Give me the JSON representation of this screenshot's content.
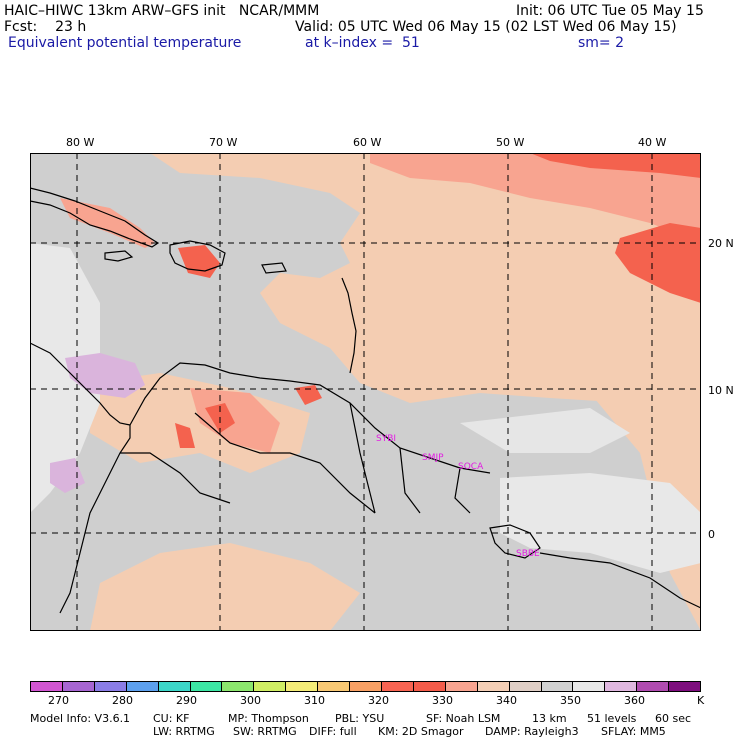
{
  "header": {
    "model": "HAIC–HIWC 13km ARW–GFS init",
    "org": "NCAR/MMM",
    "init": "Init: 06 UTC Tue 05 May 15",
    "fcst_label": "Fcst:",
    "fcst_value": "23 h",
    "valid": "Valid: 05 UTC Wed 06 May 15 (02 LST Wed 06 May 15)",
    "field": "Equivalent potential temperature",
    "level": "at k–index =",
    "level_value": "51",
    "smooth": "sm= 2"
  },
  "map": {
    "lon_labels": [
      "80 W",
      "70 W",
      "60 W",
      "50 W",
      "40 W"
    ],
    "lat_labels": [
      "20 N",
      "10 N",
      "0"
    ],
    "sites": [
      "SYBI",
      "SMJP",
      "SOCA",
      "SBBE"
    ]
  },
  "colorbar": {
    "colors": [
      "#d256d2",
      "#a766d2",
      "#8b7de6",
      "#5da0ee",
      "#3cd6c8",
      "#3ce6a4",
      "#8ce66e",
      "#d0ee64",
      "#f4ec78",
      "#f8c874",
      "#f8a064",
      "#f86452",
      "#f45c4a",
      "#f8a490",
      "#f4cfb6",
      "#e0cfc6",
      "#d2d2d2",
      "#e8e8e8",
      "#e0b8e0",
      "#b04cb0",
      "#7e0e7e"
    ],
    "ticks": [
      "270",
      "280",
      "290",
      "300",
      "310",
      "320",
      "330",
      "340",
      "350",
      "360"
    ],
    "unit": "K"
  },
  "model_info": {
    "line1": [
      "Model Info: V3.6.1",
      "CU: KF",
      "MP: Thompson",
      "PBL: YSU",
      "SF: Noah LSM",
      "13 km",
      "51 levels",
      "60 sec"
    ],
    "line2": [
      "LW: RRTMG",
      "SW: RRTMG",
      "DIFF: full",
      "KM: 2D Smagor",
      "DAMP: Rayleigh3",
      "SFLAY: MM5"
    ]
  }
}
